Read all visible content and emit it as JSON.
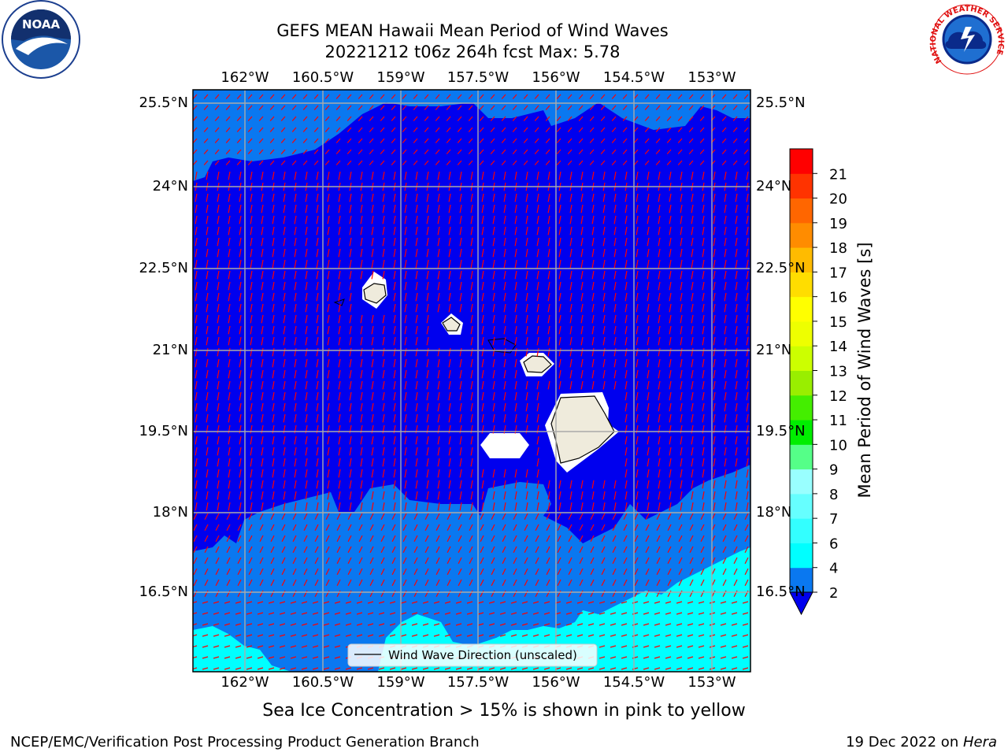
{
  "title": {
    "line1": "GEFS MEAN Hawaii Mean Period of Wind Waves",
    "line2": "20221212 t06z 264h fcst   Max: 5.78"
  },
  "logos": {
    "noaa": {
      "text": "NOAA"
    },
    "nws": {
      "text": "NATIONAL WEATHER SERVICE"
    }
  },
  "map": {
    "lon_ticks": [
      "162°W",
      "160.5°W",
      "159°W",
      "157.5°W",
      "156°W",
      "154.5°W",
      "153°W"
    ],
    "lat_ticks": [
      "25.5°N",
      "24°N",
      "22.5°N",
      "21°N",
      "19.5°N",
      "18°N",
      "16.5°N"
    ],
    "colors": {
      "deep": "#0000ee",
      "blue": "#0a78f0",
      "cyan": "#00ffff",
      "land": "#efebdc",
      "arrow": "#ff0000",
      "grid": "#aaaaaa"
    },
    "legend": "Wind Wave Direction (unscaled)"
  },
  "colorbar": {
    "label": "Mean Period of Wind Waves [s]",
    "ticks": [
      "2",
      "4",
      "6",
      "7",
      "8",
      "9",
      "10",
      "11",
      "12",
      "13",
      "14",
      "15",
      "16",
      "17",
      "18",
      "19",
      "20",
      "21"
    ],
    "colors": [
      "#0a78f0",
      "#00ffff",
      "#33ffff",
      "#66ffff",
      "#99ffff",
      "#55ff88",
      "#00ee00",
      "#44ee00",
      "#99ee00",
      "#ccff00",
      "#eeff00",
      "#ffff00",
      "#ffdd00",
      "#ffbb00",
      "#ff8c00",
      "#ff6600",
      "#ff3300",
      "#ff0000"
    ],
    "under_color": "#0000ee"
  },
  "caption": "Sea Ice Concentration > 15% is shown in pink to yellow",
  "footer": {
    "left": "NCEP/EMC/Verification Post Processing Product Generation Branch",
    "right_date": "19 Dec 2022 on ",
    "right_host": "Hera"
  }
}
